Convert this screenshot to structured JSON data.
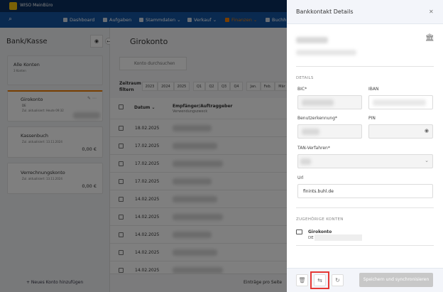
{
  "app": {
    "title": "WISO MeinBüro"
  },
  "nav": {
    "items": [
      {
        "label": "Dashboard"
      },
      {
        "label": "Aufgaben"
      },
      {
        "label": "Stammdaten ⌄"
      },
      {
        "label": "Verkauf ⌄"
      },
      {
        "label": "Finanzen ⌄",
        "active": true
      },
      {
        "label": "Buchh"
      }
    ]
  },
  "left": {
    "title": "Bank/Kasse",
    "all": {
      "label": "Alle Konten",
      "count": "3 Konten"
    },
    "accounts": [
      {
        "name": "Girokonto",
        "iban": "DE",
        "updated": "Zul. aktualisiert: Heute 09:32"
      },
      {
        "name": "Kassenbuch",
        "updated": "Zul. aktualisiert: 13.11.2024",
        "balance": "0,00 €"
      },
      {
        "name": "Verrechnungskonto",
        "updated": "Zul. aktualisiert: 13.11.2024",
        "balance": "0,00 €"
      }
    ],
    "add": "+ Neues Konto hinzufügen"
  },
  "main": {
    "title": "Girokonto",
    "search_placeholder": "Konto durchsuchen",
    "filter_label": "Zeitraum filtern",
    "years": [
      "2023",
      "2024",
      "2025"
    ],
    "quarters": [
      "Q1",
      "Q2",
      "Q3",
      "Q4"
    ],
    "months": [
      "Jan.",
      "Feb.",
      "Mär"
    ],
    "col_date": "Datum ⌄",
    "col_payee": "Empfänger/Auftraggeber",
    "col_purpose": "Verwendungszweck",
    "dates": [
      "18.02.2025",
      "17.02.2025",
      "17.02.2025",
      "17.02.2025",
      "14.02.2025",
      "14.02.2025",
      "14.02.2025",
      "14.02.2025",
      "14.02.2025"
    ],
    "per_page": "Einträge pro Seite"
  },
  "drawer": {
    "title": "Bankkontakt Details",
    "details": "DETAILS",
    "bic": "BIC*",
    "iban": "IBAN",
    "user": "Benutzerkennung*",
    "pin": "PIN",
    "tan": "TAN-Verfahren*",
    "url_label": "Url",
    "url_value": "finints.buhl.de",
    "related": "ZUGEHÖRIGE KONTEN",
    "related_name": "Girokonto",
    "related_iban": "DE",
    "save": "Speichern und synchronisieren"
  },
  "colors": {
    "accent": "#f07c00",
    "highlight": "#e53935",
    "nav": "#1554a0"
  }
}
